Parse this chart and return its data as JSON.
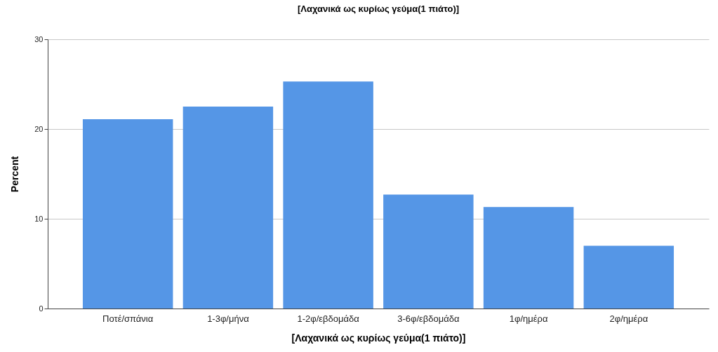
{
  "chart_data": {
    "type": "bar",
    "title": "[Λαχανικά ως κυρίως γεύμα(1 πιάτο)]",
    "xlabel": "[Λαχανικά ως κυρίως γεύμα(1 πιάτο)]",
    "ylabel": "Percent",
    "categories": [
      "Ποτέ/σπάνια",
      "1-3φ/μήνα",
      "1-2φ/εβδομάδα",
      "3-6φ/εβδομάδα",
      "1φ/ημέρα",
      "2φ/ημέρα"
    ],
    "values": [
      21.1,
      22.5,
      25.3,
      12.7,
      11.3,
      7.0
    ],
    "color": "#5596e6",
    "ylim": [
      0,
      30
    ],
    "yticks": [
      0,
      10,
      20,
      30
    ],
    "grid": "y"
  }
}
